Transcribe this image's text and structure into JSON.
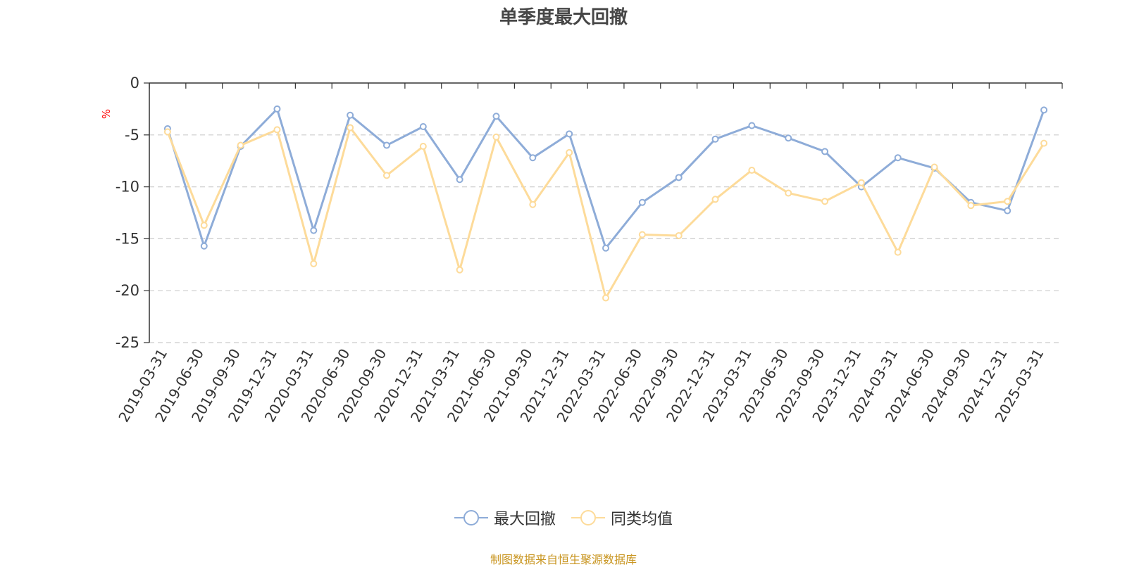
{
  "chart_data": {
    "type": "line",
    "title": "单季度最大回撤",
    "ylabel": "%",
    "xlabel": "",
    "ylim": [
      -25,
      0
    ],
    "yticks": [
      0,
      -5,
      -10,
      -15,
      -20,
      -25
    ],
    "grid": true,
    "legend_position": "bottom-center",
    "categories": [
      "2019-03-31",
      "2019-06-30",
      "2019-09-30",
      "2019-12-31",
      "2020-03-31",
      "2020-06-30",
      "2020-09-30",
      "2020-12-31",
      "2021-03-31",
      "2021-06-30",
      "2021-09-30",
      "2021-12-31",
      "2022-03-31",
      "2022-06-30",
      "2022-09-30",
      "2022-12-31",
      "2023-03-31",
      "2023-06-30",
      "2023-09-30",
      "2023-12-31",
      "2024-03-31",
      "2024-06-30",
      "2024-09-30",
      "2024-12-31",
      "2025-03-31"
    ],
    "series": [
      {
        "name": "最大回撤",
        "color": "#8eacd8",
        "values": [
          -4.4,
          -15.7,
          -6.1,
          -2.5,
          -14.2,
          -3.1,
          -6.0,
          -4.2,
          -9.3,
          -3.2,
          -7.2,
          -4.9,
          -15.9,
          -11.5,
          -9.1,
          -5.4,
          -4.1,
          -5.3,
          -6.6,
          -10.0,
          -7.2,
          -8.2,
          -11.5,
          -12.3,
          -2.6
        ]
      },
      {
        "name": "同类均值",
        "color": "#fddb9a",
        "values": [
          -4.7,
          -13.7,
          -6.0,
          -4.5,
          -17.4,
          -4.3,
          -8.9,
          -6.1,
          -18.0,
          -5.2,
          -11.7,
          -6.7,
          -20.7,
          -14.6,
          -14.7,
          -11.2,
          -8.4,
          -10.6,
          -11.4,
          -9.6,
          -16.3,
          -8.1,
          -11.8,
          -11.4,
          -5.8
        ]
      }
    ]
  },
  "source_note": "制图数据来自恒生聚源数据库"
}
